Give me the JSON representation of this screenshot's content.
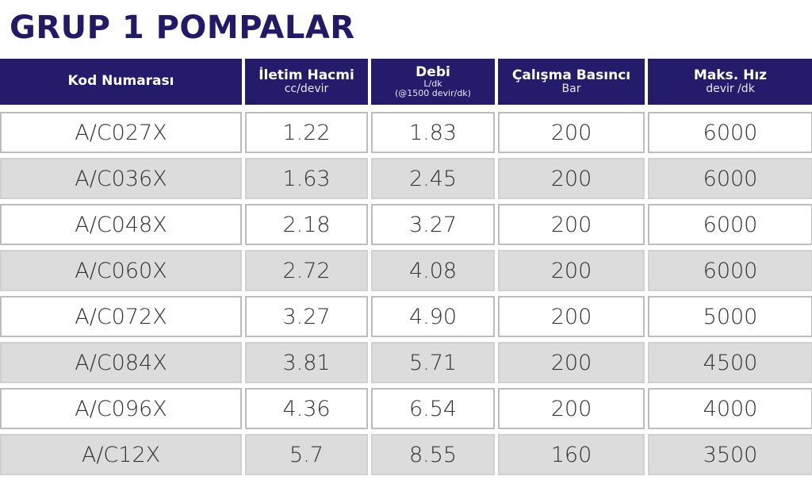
{
  "title": "GRUP 1 POMPALAR",
  "headers": [
    {
      "main": "Kod Numarası",
      "sub": []
    },
    {
      "main": "İletim Hacmi",
      "sub": [
        "cc/devir"
      ]
    },
    {
      "main": "Debi",
      "sub": [
        "L/dk",
        "(@1500 devir/dk)"
      ]
    },
    {
      "main": "Çalışma Basıncı",
      "sub": [
        "Bar"
      ]
    },
    {
      "main": "Maks. Hız",
      "sub": [
        "devir /dk"
      ]
    }
  ],
  "rows": [
    [
      "A/C027X",
      "1.22",
      "1.83",
      "200",
      "6000"
    ],
    [
      "A/C036X",
      "1.63",
      "2.45",
      "200",
      "6000"
    ],
    [
      "A/C048X",
      "2.18",
      "3.27",
      "200",
      "6000"
    ],
    [
      "A/C060X",
      "2.72",
      "4.08",
      "200",
      "6000"
    ],
    [
      "A/C072X",
      "3.27",
      "4.90",
      "200",
      "5000"
    ],
    [
      "A/C084X",
      "3.81",
      "5.71",
      "200",
      "4500"
    ],
    [
      "A/C096X",
      "4.36",
      "6.54",
      "200",
      "4000"
    ],
    [
      "A/C12X",
      "5.7",
      "8.55",
      "160",
      "3500"
    ]
  ],
  "colors": {
    "header": "#241c6b",
    "title": "#221a66",
    "stripe": "#dcdcdc"
  }
}
